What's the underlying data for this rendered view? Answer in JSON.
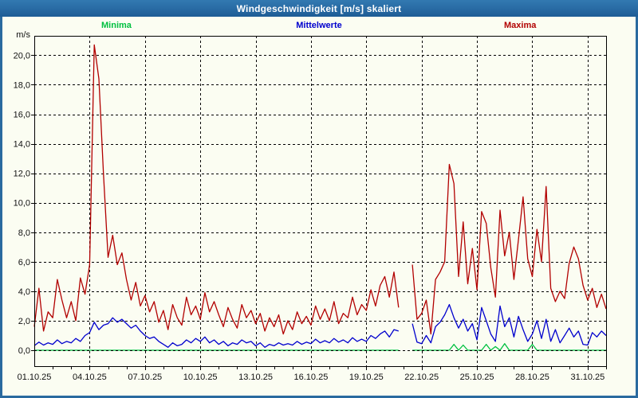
{
  "window": {
    "title": "Windgeschwindigkeit [m/s] skaliert"
  },
  "chart_data": {
    "type": "line",
    "title": "Windgeschwindigkeit [m/s] skaliert",
    "xlabel": "",
    "ylabel": "m/s",
    "ylim": [
      -1.1,
      21.3
    ],
    "grid": "dashed",
    "legend_position": "top",
    "y_ticks": {
      "values": [
        0,
        2,
        4,
        6,
        8,
        10,
        12,
        14,
        16,
        18,
        20
      ],
      "labels": [
        "0,0",
        "2,0",
        "4,0",
        "6,0",
        "8,0",
        "10,0",
        "12,0",
        "14,0",
        "16,0",
        "18,0",
        "20,0"
      ]
    },
    "x_ticks": {
      "days": [
        1,
        4,
        7,
        10,
        13,
        16,
        19,
        22,
        25,
        28,
        31
      ],
      "labels": [
        "01.10.25",
        "04.10.25",
        "07.10.25",
        "10.10.25",
        "13.10.25",
        "16.10.25",
        "19.10.25",
        "22.10.25",
        "25.10.25",
        "28.10.25",
        "31.10.25"
      ]
    },
    "x_start_day": 1,
    "x_end_day": 32,
    "x_step_days": 0.25,
    "data_gap_days": [
      20.8,
      21.45
    ],
    "axis_color": "#000000",
    "series": [
      {
        "name": "Minima",
        "color": "#00c040",
        "values": [
          0,
          0,
          0,
          0,
          0,
          0,
          0,
          0,
          0,
          0,
          0,
          0,
          0,
          0,
          0,
          0,
          0,
          0,
          0,
          0,
          0,
          0,
          0,
          0,
          0,
          0,
          0,
          0,
          0,
          0,
          0,
          0,
          0,
          0,
          0,
          0,
          0,
          0,
          0,
          0,
          0,
          0,
          0,
          0,
          0,
          0,
          0,
          0,
          0,
          0,
          0,
          0,
          0,
          0,
          0,
          0,
          0,
          0,
          0,
          0,
          0,
          0,
          0,
          0,
          0,
          0,
          0,
          0,
          0,
          0,
          0,
          0,
          0,
          0,
          0,
          0,
          0,
          0,
          0,
          0,
          null,
          null,
          0,
          0,
          0,
          0,
          0,
          0,
          0,
          0,
          0,
          0.4,
          0,
          0.35,
          0,
          0,
          0,
          0,
          0.4,
          0,
          0.25,
          0,
          0.45,
          0,
          0,
          0,
          0,
          0,
          0.4,
          0,
          0,
          0,
          0,
          0,
          0,
          0,
          0,
          0,
          0,
          0,
          0,
          0,
          0,
          0,
          0
        ]
      },
      {
        "name": "Mittelwerte",
        "color": "#0000cd",
        "values": [
          0.3,
          0.55,
          0.35,
          0.5,
          0.4,
          0.7,
          0.45,
          0.6,
          0.5,
          0.8,
          0.6,
          1.0,
          1.2,
          1.9,
          1.4,
          1.7,
          1.8,
          2.2,
          1.9,
          2.1,
          1.8,
          1.5,
          1.7,
          1.3,
          1.0,
          0.8,
          0.9,
          0.6,
          0.4,
          0.2,
          0.5,
          0.3,
          0.4,
          0.7,
          0.5,
          0.8,
          0.6,
          0.9,
          0.5,
          0.7,
          0.4,
          0.6,
          0.3,
          0.5,
          0.4,
          0.7,
          0.5,
          0.6,
          0.3,
          0.5,
          0.2,
          0.4,
          0.3,
          0.5,
          0.35,
          0.45,
          0.35,
          0.6,
          0.4,
          0.55,
          0.45,
          0.75,
          0.5,
          0.65,
          0.5,
          0.8,
          0.55,
          0.7,
          0.5,
          0.85,
          0.6,
          0.75,
          0.6,
          1.0,
          0.8,
          1.1,
          1.3,
          0.9,
          1.4,
          1.3,
          null,
          null,
          1.8,
          0.55,
          0.45,
          1.0,
          0.5,
          1.6,
          1.9,
          2.4,
          3.1,
          2.2,
          1.5,
          2.1,
          1.3,
          1.8,
          0.7,
          2.9,
          2.0,
          1.1,
          0.6,
          3.0,
          1.6,
          2.2,
          0.9,
          2.3,
          1.4,
          0.6,
          1.1,
          2.0,
          0.8,
          2.1,
          0.6,
          1.4,
          0.5,
          1.0,
          1.5,
          0.9,
          1.3,
          0.4,
          0.35,
          1.2,
          0.9,
          1.3,
          1.0
        ]
      },
      {
        "name": "Maxima",
        "color": "#b20000",
        "values": [
          1.6,
          4.2,
          1.3,
          2.6,
          2.2,
          4.8,
          3.4,
          2.2,
          3.3,
          2.0,
          4.9,
          3.8,
          5.8,
          20.7,
          18.4,
          12.0,
          6.3,
          7.8,
          5.8,
          6.6,
          4.8,
          3.4,
          4.6,
          3.0,
          3.7,
          2.6,
          3.3,
          1.9,
          2.7,
          1.4,
          3.1,
          2.2,
          1.7,
          3.6,
          2.4,
          3.0,
          2.1,
          3.9,
          2.6,
          3.3,
          2.4,
          1.6,
          2.9,
          2.1,
          1.5,
          3.1,
          2.2,
          2.7,
          1.8,
          2.5,
          1.3,
          2.2,
          1.6,
          2.4,
          1.1,
          2.0,
          1.4,
          2.6,
          1.8,
          2.3,
          1.7,
          3.0,
          2.1,
          2.8,
          2.0,
          3.3,
          1.8,
          2.5,
          2.2,
          3.6,
          2.4,
          3.1,
          2.7,
          4.1,
          3.0,
          4.4,
          5.0,
          3.6,
          5.3,
          2.9,
          null,
          null,
          5.8,
          2.1,
          2.5,
          3.4,
          1.1,
          4.8,
          5.3,
          6.0,
          12.6,
          11.3,
          5.0,
          8.7,
          4.5,
          6.9,
          4.1,
          9.4,
          8.6,
          5.6,
          3.6,
          9.5,
          6.4,
          8.0,
          4.8,
          7.5,
          10.4,
          6.2,
          5.0,
          8.2,
          6.0,
          11.1,
          4.2,
          3.3,
          4.0,
          3.5,
          5.9,
          7.0,
          6.2,
          4.4,
          3.4,
          4.2,
          2.9,
          3.8,
          2.8
        ]
      }
    ]
  }
}
